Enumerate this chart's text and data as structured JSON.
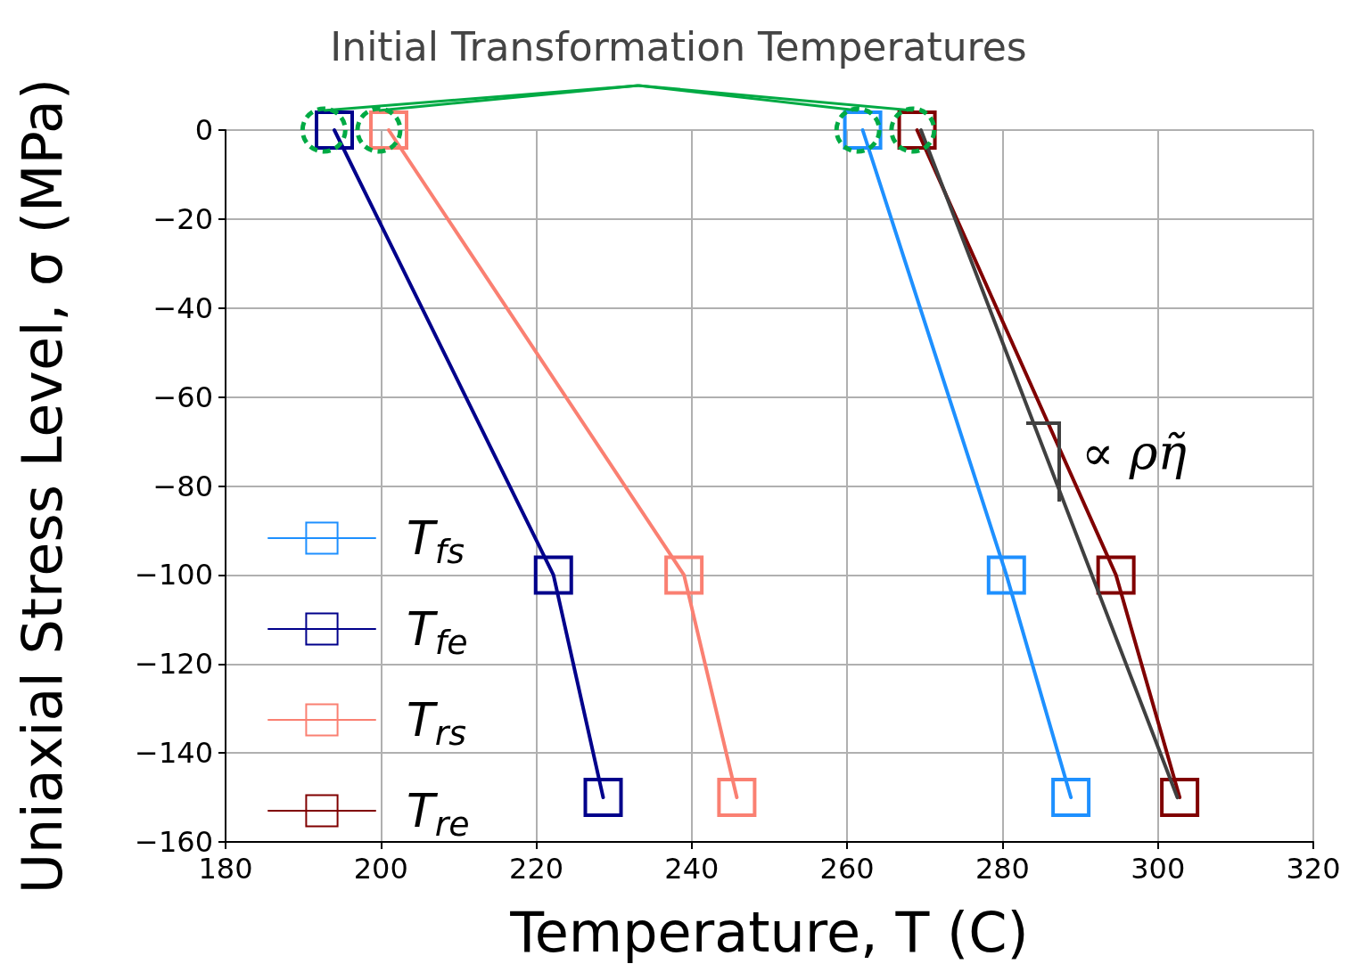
{
  "chart_data": {
    "type": "line",
    "xlabel": "Temperature, T (C)",
    "ylabel": "Uniaxial Stress Level, σ (MPa)",
    "xlim": [
      180,
      320
    ],
    "xticks": [
      180,
      200,
      220,
      240,
      260,
      280,
      300,
      320
    ],
    "ylim": [
      -160,
      0
    ],
    "yticks": [
      {
        "value": -160,
        "label": "−160"
      },
      {
        "value": -140,
        "label": "−140"
      },
      {
        "value": -120,
        "label": "−120"
      },
      {
        "value": -100,
        "label": "−100"
      },
      {
        "value": -80,
        "label": "−80"
      },
      {
        "value": -60,
        "label": "−60"
      },
      {
        "value": -40,
        "label": "−40"
      },
      {
        "value": -20,
        "label": "−20"
      },
      0
    ],
    "grid": true,
    "legend": "bottom left",
    "marker": "square",
    "line_style": "solid",
    "series": [
      {
        "name": "T$_{fs}$",
        "color": "#1e90ff",
        "x": [
          262,
          280.5,
          288.8
        ],
        "values": [
          0,
          -100,
          -150
        ]
      },
      {
        "name": "T$_{fe}$",
        "color": "#00008b",
        "x": [
          194,
          222.2,
          228.6
        ],
        "values": [
          0,
          -100,
          -150
        ]
      },
      {
        "name": "T$_{rs}$",
        "color": "#fa8072",
        "x": [
          201,
          239,
          245.8
        ],
        "values": [
          0,
          -100,
          -150
        ]
      },
      {
        "name": "T$_{re}$",
        "color": "#800000",
        "x": [
          269,
          294.6,
          302.8
        ],
        "values": [
          0,
          -100,
          -150
        ]
      },
      {
        "color": "#404040",
        "marker": "none",
        "x": [
          269.5,
          302.5
        ],
        "values": [
          0,
          -150
        ]
      }
    ],
    "annotations": [
      "Initial Transformation Temperatures",
      "∝ ρη̃"
    ]
  }
}
